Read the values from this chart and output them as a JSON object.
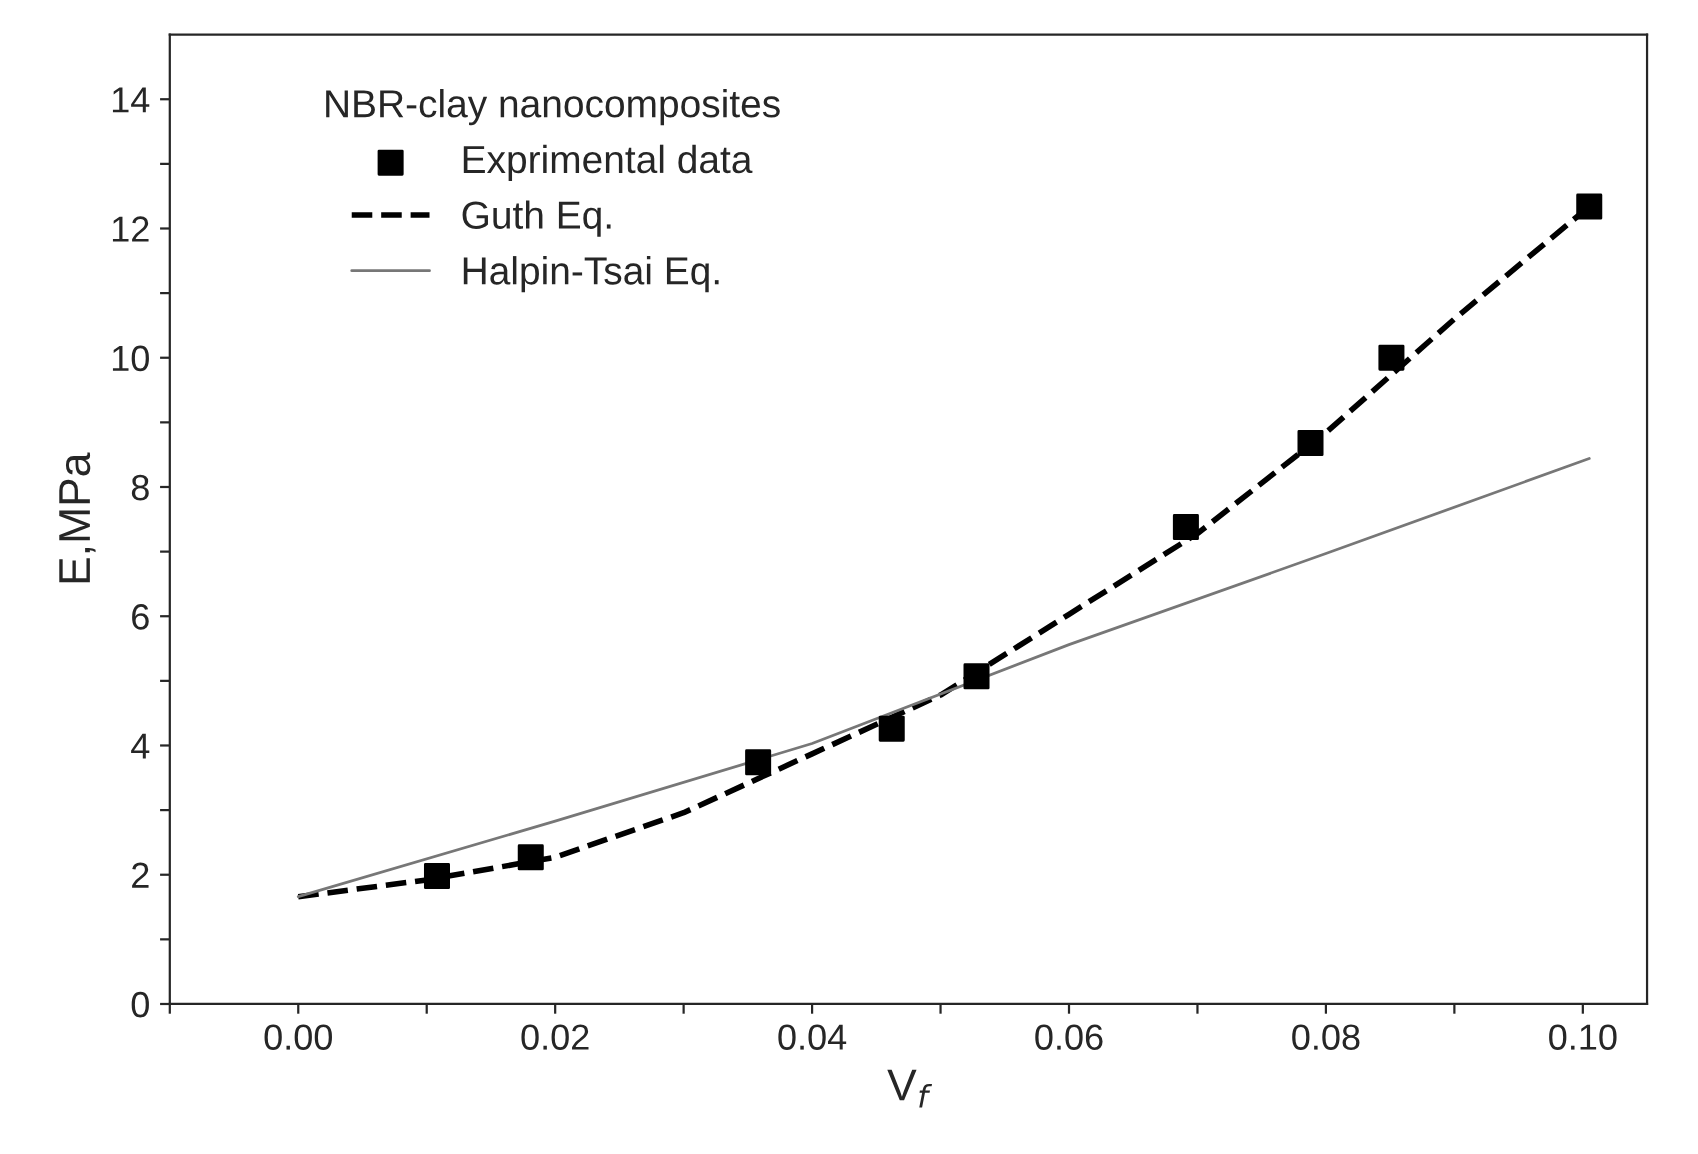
{
  "chart_data": {
    "type": "line",
    "xlabel": "V$_{f}$",
    "ylabel": "E,MPa",
    "legend_title": "NBR-clay nanocomposites",
    "legend": "top left",
    "grid": false,
    "series": [
      {
        "name": "Exprimental data",
        "type": "scatter",
        "marker": "square",
        "color": "#000000",
        "x": [
          0.0108,
          0.0181,
          0.0358,
          0.0462,
          0.0528,
          0.0691,
          0.0788,
          0.0851,
          0.1005
        ],
        "values": [
          1.98,
          2.27,
          3.74,
          4.26,
          5.07,
          7.38,
          8.68,
          10.0,
          12.34
        ]
      },
      {
        "name": "Guth Eq.",
        "line_style": "dashed",
        "color": "#000000",
        "x": [
          0,
          0.01,
          0.02,
          0.03,
          0.04,
          0.05,
          0.06,
          0.07,
          0.08,
          0.09,
          0.1005
        ],
        "values": [
          1.66,
          1.92,
          2.27,
          2.96,
          3.87,
          4.78,
          6.03,
          7.28,
          8.84,
          10.6,
          12.34
        ]
      },
      {
        "name": "Halpin-Tsai Eq.",
        "line_style": "solid",
        "color": "#777777",
        "x": [
          0,
          0.02,
          0.04,
          0.06,
          0.08,
          0.1005
        ],
        "values": [
          1.66,
          2.83,
          4.03,
          5.56,
          6.97,
          8.44
        ]
      }
    ],
    "xlim": [
      -0.01,
      0.105
    ],
    "ylim": [
      0,
      15
    ],
    "xticks": [
      {
        "value": -0.01,
        "label": null
      },
      {
        "value": 0,
        "label": "0.00"
      },
      {
        "value": 0.01,
        "label": null
      },
      {
        "value": 0.02,
        "label": "0.02"
      },
      {
        "value": 0.03,
        "label": null
      },
      {
        "value": 0.04,
        "label": "0.04"
      },
      {
        "value": 0.05,
        "label": null
      },
      {
        "value": 0.06,
        "label": "0.06"
      },
      {
        "value": 0.07,
        "label": null
      },
      {
        "value": 0.08,
        "label": "0.08"
      },
      {
        "value": 0.09,
        "label": null
      },
      {
        "value": 0.1,
        "label": "0.10"
      }
    ],
    "yticks": [
      0,
      {
        "value": 1,
        "label": null
      },
      2,
      {
        "value": 3,
        "label": null
      },
      4,
      {
        "value": 5,
        "label": null
      },
      6,
      {
        "value": 7,
        "label": null
      },
      8,
      {
        "value": 9,
        "label": null
      },
      10,
      {
        "value": 11,
        "label": null
      },
      12,
      {
        "value": 13,
        "label": null
      },
      14
    ]
  }
}
